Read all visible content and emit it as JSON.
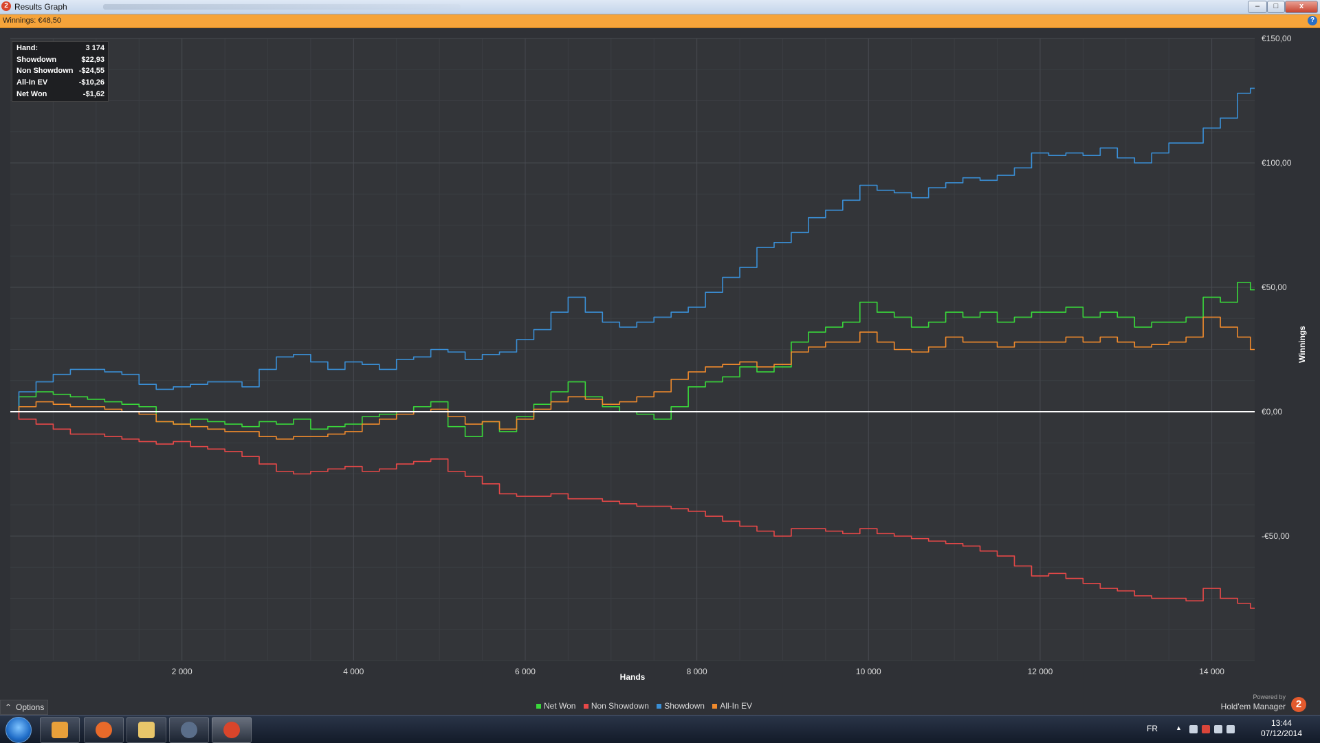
{
  "window": {
    "title": "Results Graph",
    "app_icon": "2",
    "minimize": "–",
    "maximize": "□",
    "close": "x"
  },
  "winnings_bar": {
    "label": "Winnings: €48,50",
    "help_icon": "?"
  },
  "info_box": {
    "rows": [
      {
        "key": "Hand:",
        "value": "3 174"
      },
      {
        "key": "Showdown",
        "value": "$22,93"
      },
      {
        "key": "Non Showdown",
        "value": "-$24,55"
      },
      {
        "key": "All-In EV",
        "value": "-$10,26"
      },
      {
        "key": "Net Won",
        "value": "-$1,62"
      }
    ]
  },
  "colors": {
    "net_won": "#39d83a",
    "non_showdown": "#e84848",
    "showdown": "#3a8fd6",
    "all_in_ev": "#f08a2c",
    "zero_line": "#ffffff",
    "grid": "#474a50"
  },
  "chart_data": {
    "type": "line",
    "xlabel": "Hands",
    "ylabel": "Winnings",
    "xlim": [
      0,
      14500
    ],
    "ylim": [
      -100,
      150
    ],
    "x_ticks": [
      2000,
      4000,
      6000,
      8000,
      10000,
      12000,
      14000
    ],
    "x_tick_labels": [
      "2 000",
      "4 000",
      "6 000",
      "8 000",
      "10 000",
      "12 000",
      "14 000"
    ],
    "y_ticks": [
      150,
      100,
      50,
      0,
      -50
    ],
    "y_tick_labels": [
      "€150,00",
      "€100,00",
      "€50,00",
      "€0,00",
      "-€50,00"
    ],
    "grid": true,
    "legend_position": "bottom-center",
    "x": [
      0,
      200,
      400,
      600,
      800,
      1000,
      1200,
      1400,
      1600,
      1800,
      2000,
      2200,
      2400,
      2600,
      2800,
      3000,
      3200,
      3400,
      3600,
      3800,
      4000,
      4200,
      4400,
      4600,
      4800,
      5000,
      5200,
      5400,
      5600,
      5800,
      6000,
      6200,
      6400,
      6600,
      6800,
      7000,
      7200,
      7400,
      7600,
      7800,
      8000,
      8200,
      8400,
      8600,
      8800,
      9000,
      9200,
      9400,
      9600,
      9800,
      10000,
      10200,
      10400,
      10600,
      10800,
      11000,
      11200,
      11400,
      11600,
      11800,
      12000,
      12200,
      12400,
      12600,
      12800,
      13000,
      13200,
      13400,
      13600,
      13800,
      14000,
      14200,
      14400,
      14500
    ],
    "series": [
      {
        "name": "Net Won",
        "values": [
          0,
          6,
          8,
          7,
          6,
          5,
          4,
          3,
          2,
          -4,
          -5,
          -3,
          -4,
          -5,
          -6,
          -4,
          -5,
          -3,
          -7,
          -6,
          -5,
          -2,
          -1,
          0,
          2,
          4,
          -6,
          -10,
          -4,
          -8,
          -2,
          3,
          8,
          12,
          6,
          2,
          0,
          -1,
          -3,
          2,
          10,
          12,
          14,
          18,
          16,
          18,
          28,
          32,
          34,
          36,
          44,
          40,
          38,
          34,
          36,
          40,
          38,
          40,
          36,
          38,
          40,
          40,
          42,
          38,
          40,
          38,
          34,
          36,
          36,
          38,
          46,
          44,
          52,
          49
        ],
        "color_key": "net_won"
      },
      {
        "name": "Non Showdown",
        "values": [
          0,
          -3,
          -5,
          -7,
          -9,
          -9,
          -10,
          -11,
          -12,
          -13,
          -12,
          -14,
          -15,
          -16,
          -18,
          -21,
          -24,
          -25,
          -24,
          -23,
          -22,
          -24,
          -23,
          -21,
          -20,
          -19,
          -24,
          -26,
          -29,
          -33,
          -34,
          -34,
          -33,
          -35,
          -35,
          -36,
          -37,
          -38,
          -38,
          -39,
          -40,
          -42,
          -44,
          -46,
          -48,
          -50,
          -47,
          -47,
          -48,
          -49,
          -47,
          -49,
          -50,
          -51,
          -52,
          -53,
          -54,
          -56,
          -58,
          -62,
          -66,
          -65,
          -67,
          -69,
          -71,
          -72,
          -74,
          -75,
          -75,
          -76,
          -71,
          -75,
          -77,
          -79
        ],
        "color_key": "non_showdown"
      },
      {
        "name": "Showdown",
        "values": [
          0,
          8,
          12,
          15,
          17,
          17,
          16,
          15,
          11,
          9,
          10,
          11,
          12,
          12,
          10,
          17,
          22,
          23,
          20,
          17,
          20,
          19,
          17,
          21,
          22,
          25,
          24,
          21,
          23,
          24,
          29,
          33,
          40,
          46,
          40,
          36,
          34,
          36,
          38,
          40,
          42,
          48,
          54,
          58,
          66,
          68,
          72,
          78,
          81,
          85,
          91,
          89,
          88,
          86,
          90,
          92,
          94,
          93,
          95,
          98,
          104,
          103,
          104,
          103,
          106,
          102,
          100,
          104,
          108,
          108,
          114,
          118,
          128,
          130
        ],
        "color_key": "showdown"
      },
      {
        "name": "All-In EV",
        "values": [
          0,
          2,
          4,
          3,
          2,
          2,
          1,
          0,
          -1,
          -4,
          -5,
          -6,
          -7,
          -8,
          -8,
          -10,
          -11,
          -10,
          -10,
          -9,
          -8,
          -5,
          -3,
          -1,
          0,
          1,
          -2,
          -5,
          -4,
          -7,
          -3,
          1,
          4,
          6,
          5,
          3,
          4,
          6,
          8,
          13,
          16,
          18,
          19,
          20,
          18,
          19,
          24,
          26,
          28,
          28,
          32,
          28,
          25,
          24,
          26,
          30,
          28,
          28,
          26,
          28,
          28,
          28,
          30,
          28,
          30,
          28,
          26,
          27,
          28,
          30,
          38,
          34,
          30,
          25
        ],
        "color_key": "all_in_ev"
      }
    ]
  },
  "options": {
    "label": "Options",
    "chevron": "⌃"
  },
  "legend": {
    "items": [
      {
        "label": "Net Won",
        "color_key": "net_won"
      },
      {
        "label": "Non Showdown",
        "color_key": "non_showdown"
      },
      {
        "label": "Showdown",
        "color_key": "showdown"
      },
      {
        "label": "All-In EV",
        "color_key": "all_in_ev"
      }
    ]
  },
  "branding": {
    "powered_by": "Powered by",
    "product": "Hold'em Manager",
    "logo": "2"
  },
  "taskbar": {
    "apps": [
      {
        "name": "media-player-icon",
        "color": "#e8a03a"
      },
      {
        "name": "firefox-icon",
        "color": "#e86a2a"
      },
      {
        "name": "folder-icon",
        "color": "#e8c66a"
      },
      {
        "name": "steam-icon",
        "color": "#5a6e8a"
      },
      {
        "name": "holdem-manager-icon",
        "color": "#d9452b"
      }
    ],
    "language": "FR",
    "time": "13:44",
    "date": "07/12/2014"
  }
}
